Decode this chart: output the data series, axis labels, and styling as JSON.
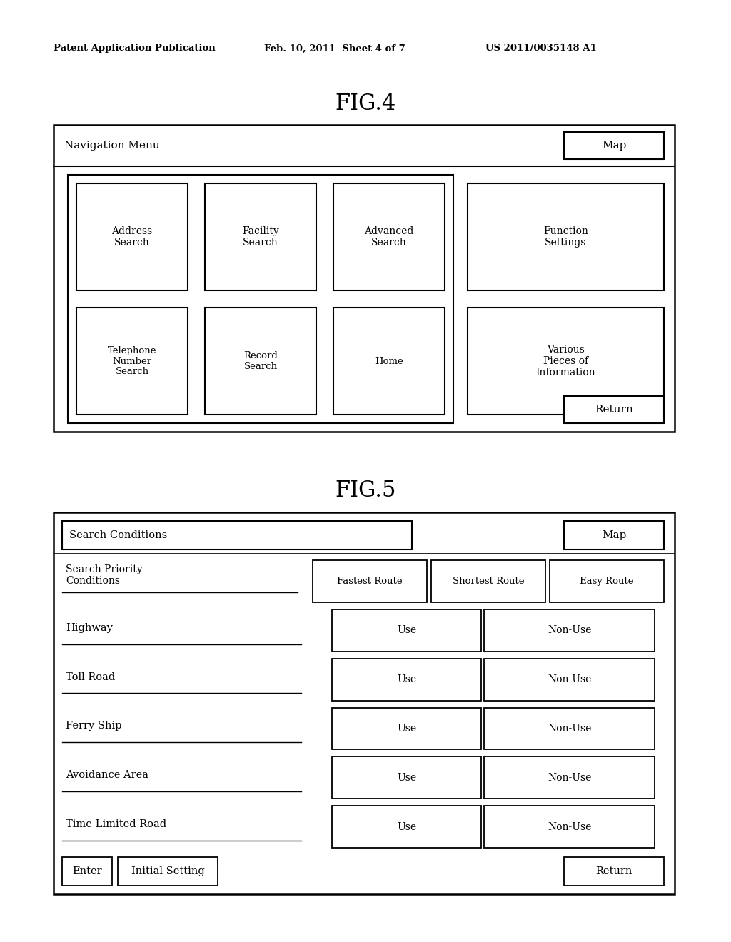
{
  "bg_color": "#ffffff",
  "header_line1": "Patent Application Publication",
  "header_line2": "Feb. 10, 2011  Sheet 4 of 7",
  "header_line3": "US 2011/0035148 A1",
  "fig4_title": "FIG.4",
  "fig5_title": "FIG.5",
  "fig4_nav_label": "Navigation Menu",
  "fig4_map": "Map",
  "fig4_left_btns": [
    [
      "Address\nSearch",
      "Facility\nSearch",
      "Advanced\nSearch"
    ],
    [
      "Telephone\nNumber\nSearch",
      "Record\nSearch",
      "Home"
    ]
  ],
  "fig4_right_btns": [
    "Function\nSettings",
    "Various\nPieces of\nInformation"
  ],
  "fig4_return": "Return",
  "fig5_sc": "Search Conditions",
  "fig5_map": "Map",
  "fig5_priority_label": "Search Priority\nConditions",
  "fig5_priority_btns": [
    "Fastest Route",
    "Shortest Route",
    "Easy Route"
  ],
  "fig5_rows": [
    {
      "label": "Highway",
      "b1": "Use",
      "b2": "Non-Use"
    },
    {
      "label": "Toll Road",
      "b1": "Use",
      "b2": "Non-Use"
    },
    {
      "label": "Ferry Ship",
      "b1": "Use",
      "b2": "Non-Use"
    },
    {
      "label": "Avoidance Area",
      "b1": "Use",
      "b2": "Non-Use"
    },
    {
      "label": "Time-Limited Road",
      "b1": "Use",
      "b2": "Non-Use"
    }
  ],
  "fig5_bot_btns": [
    "Enter",
    "Initial Setting"
  ],
  "fig5_return": "Return"
}
